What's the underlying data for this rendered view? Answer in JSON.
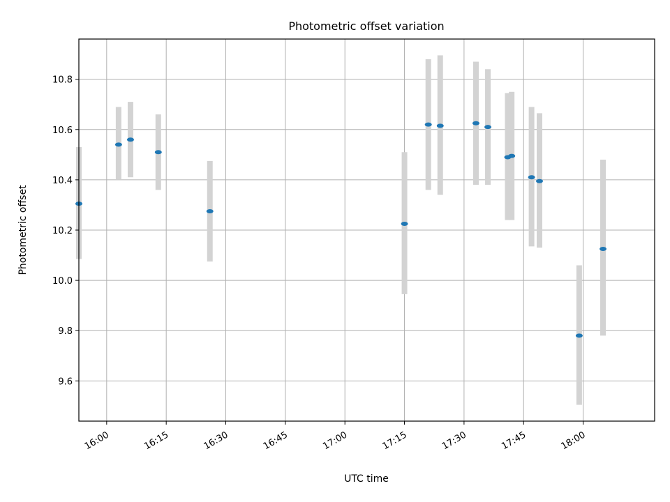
{
  "chart_data": {
    "type": "scatter",
    "title": "Photometric offset variation",
    "xlabel": "UTC time",
    "ylabel": "Photometric offset",
    "x_ticks": [
      "16:00",
      "16:15",
      "16:30",
      "16:45",
      "17:00",
      "17:15",
      "17:30",
      "17:45",
      "18:00"
    ],
    "x_tick_minutes": [
      960,
      975,
      990,
      1005,
      1020,
      1035,
      1050,
      1065,
      1080
    ],
    "xlim_minutes": [
      953,
      1098
    ],
    "y_ticks": [
      "9.6",
      "9.8",
      "10.0",
      "10.2",
      "10.4",
      "10.6",
      "10.8"
    ],
    "ylim": [
      9.44,
      10.96
    ],
    "grid": true,
    "colors": {
      "marker": "#1f77b4",
      "errorbar": "#d3d3d3",
      "grid": "#b0b0b0"
    },
    "series": [
      {
        "points": [
          {
            "time": "15:53",
            "y": 10.305,
            "ylow": 10.085,
            "yhigh": 10.53
          },
          {
            "time": "16:03",
            "y": 10.54,
            "ylow": 10.4,
            "yhigh": 10.69
          },
          {
            "time": "16:06",
            "y": 10.56,
            "ylow": 10.41,
            "yhigh": 10.71
          },
          {
            "time": "16:13",
            "y": 10.51,
            "ylow": 10.36,
            "yhigh": 10.66
          },
          {
            "time": "16:26",
            "y": 10.275,
            "ylow": 10.075,
            "yhigh": 10.475
          },
          {
            "time": "17:15",
            "y": 10.225,
            "ylow": 9.945,
            "yhigh": 10.51
          },
          {
            "time": "17:21",
            "y": 10.62,
            "ylow": 10.36,
            "yhigh": 10.88
          },
          {
            "time": "17:24",
            "y": 10.615,
            "ylow": 10.34,
            "yhigh": 10.895
          },
          {
            "time": "17:33",
            "y": 10.625,
            "ylow": 10.38,
            "yhigh": 10.87
          },
          {
            "time": "17:36",
            "y": 10.61,
            "ylow": 10.38,
            "yhigh": 10.84
          },
          {
            "time": "17:41",
            "y": 10.49,
            "ylow": 10.24,
            "yhigh": 10.745
          },
          {
            "time": "17:42",
            "y": 10.495,
            "ylow": 10.24,
            "yhigh": 10.75
          },
          {
            "time": "17:47",
            "y": 10.41,
            "ylow": 10.135,
            "yhigh": 10.69
          },
          {
            "time": "17:49",
            "y": 10.395,
            "ylow": 10.13,
            "yhigh": 10.665
          },
          {
            "time": "17:59",
            "y": 9.78,
            "ylow": 9.505,
            "yhigh": 10.06
          },
          {
            "time": "18:05",
            "y": 10.125,
            "ylow": 9.78,
            "yhigh": 10.48
          }
        ]
      }
    ]
  }
}
